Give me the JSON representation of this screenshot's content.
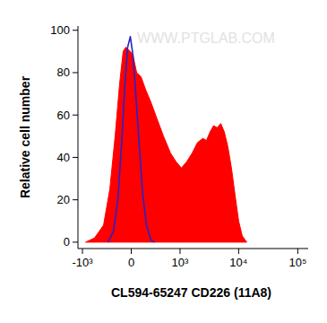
{
  "chart_data": {
    "type": "line",
    "watermark": "WWW.PTGLAB.COM",
    "x_label": "CL594-65247 CD226 (11A8)",
    "y_label": "Relative cell number",
    "xlim": [
      -1200,
      150000
    ],
    "ylim": [
      -3,
      102
    ],
    "xticks": [
      {
        "value": -1000,
        "label": "-10³"
      },
      0,
      {
        "value": 1000,
        "label": "10³"
      },
      {
        "value": 10000,
        "label": "10⁴"
      },
      {
        "value": 100000,
        "label": "10⁵"
      }
    ],
    "yticks": [
      0,
      20,
      40,
      60,
      80,
      100
    ],
    "grid": false,
    "series": [
      {
        "type": "area",
        "color": "#ff0000",
        "x": [
          -878,
          -603,
          -398,
          -286,
          -205,
          -143,
          -98,
          -65,
          -11,
          21,
          65,
          120,
          180,
          258,
          364,
          493,
          673,
          848,
          1056,
          1310,
          1622,
          2004,
          2476,
          2849,
          3277,
          3770,
          4336,
          4982,
          5731,
          6579,
          7558,
          8721,
          10006,
          11506,
          13709
        ],
        "values": [
          0,
          2,
          8,
          25,
          50,
          75,
          90,
          92,
          90,
          88,
          80,
          78,
          72,
          66,
          58,
          50,
          42,
          38,
          35,
          38,
          42,
          47,
          49,
          48,
          52,
          55,
          54,
          56,
          52,
          45,
          35,
          22,
          10,
          3,
          0
        ]
      },
      {
        "type": "line",
        "color": "#2424c8",
        "x": [
          -318,
          -231,
          -167,
          -120,
          -75,
          -43,
          -11,
          21,
          54,
          98,
          143,
          192,
          258,
          318
        ],
        "values": [
          0,
          5,
          20,
          45,
          75,
          92,
          97,
          88,
          70,
          45,
          22,
          8,
          1,
          0
        ]
      }
    ]
  }
}
